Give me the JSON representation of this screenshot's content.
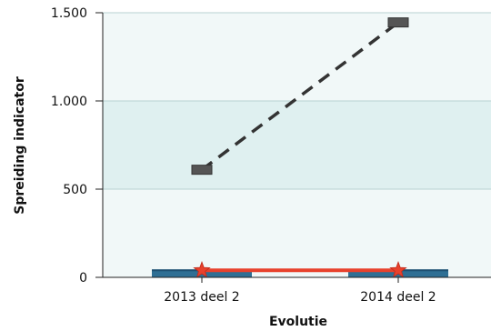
{
  "chart_data": {
    "type": "line",
    "title": "",
    "xlabel": "Evolutie",
    "ylabel": "Spreiding indicator",
    "categories": [
      "2013 deel 2",
      "2014 deel 2"
    ],
    "ylim": [
      0,
      1500
    ],
    "yticks": [
      0,
      500,
      1000,
      1500
    ],
    "ytick_labels": [
      "0",
      "500",
      "1.000",
      "1.500"
    ],
    "bands": [
      {
        "from": 0,
        "to": 500,
        "color": "#f1f8f8"
      },
      {
        "from": 500,
        "to": 1000,
        "color": "#dff0f0"
      },
      {
        "from": 1000,
        "to": 1500,
        "color": "#f1f8f8"
      }
    ],
    "series": [
      {
        "style": "dashed-line-square-markers",
        "color": "#333333",
        "values": [
          610,
          1445
        ]
      },
      {
        "style": "bar-band",
        "color": "#2f6f94",
        "values": [
          45,
          45
        ]
      },
      {
        "style": "line-star-markers",
        "color": "#e8412c",
        "values": [
          40,
          40
        ]
      }
    ],
    "grid": true,
    "legend": "none"
  }
}
